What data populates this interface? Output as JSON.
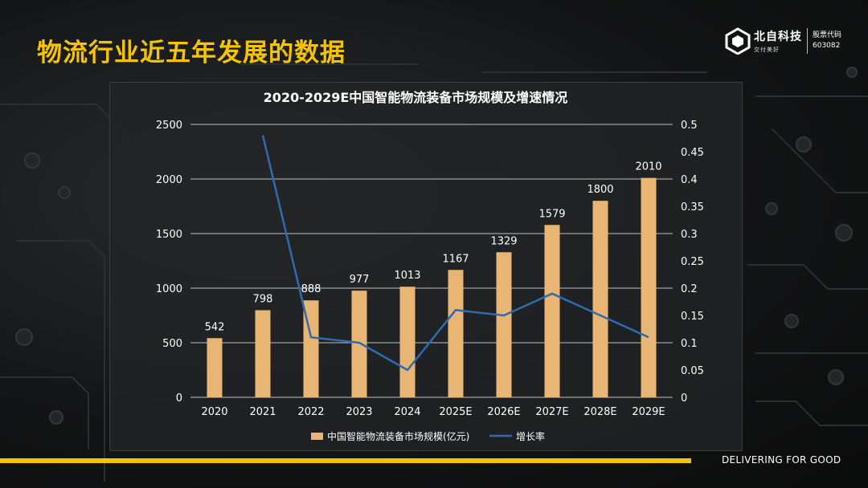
{
  "slide": {
    "title": "物流行业近五年发展的数据",
    "tagline": "DELIVERING FOR GOOD"
  },
  "logo": {
    "name": "北自科技",
    "slogan": "交付美好",
    "stock_label": "股票代码",
    "stock_code": "603082"
  },
  "colors": {
    "accent": "#f5c400",
    "bar": "#e8b574",
    "line": "#2e6cb0",
    "text": "#ffffff",
    "grid": "#bfbfbf"
  },
  "chart_data": {
    "type": "bar+line",
    "title": "2020-2029E中国智能物流装备市场规模及增速情况",
    "categories": [
      "2020",
      "2021",
      "2022",
      "2023",
      "2024",
      "2025E",
      "2026E",
      "2027E",
      "2028E",
      "2029E"
    ],
    "series": [
      {
        "name": "中国智能物流装备市场规模(亿元)",
        "type": "bar",
        "axis": "left",
        "values": [
          542,
          798,
          888,
          977,
          1013,
          1167,
          1329,
          1579,
          1800,
          2010
        ],
        "labels": [
          "542",
          "798",
          "888",
          "977",
          "1013",
          "1167",
          "1329",
          "1579",
          "1800",
          "2010"
        ]
      },
      {
        "name": "增长率",
        "type": "line",
        "axis": "right",
        "values": [
          null,
          0.48,
          0.11,
          0.1,
          0.05,
          0.16,
          0.15,
          0.19,
          0.15,
          0.11
        ]
      }
    ],
    "y_left": {
      "min": 0,
      "max": 2500,
      "ticks": [
        "0",
        "500",
        "1000",
        "1500",
        "2000",
        "2500"
      ]
    },
    "y_right": {
      "min": 0,
      "max": 0.5,
      "ticks": [
        "0",
        "0.05",
        "0.1",
        "0.15",
        "0.2",
        "0.25",
        "0.3",
        "0.35",
        "0.4",
        "0.45",
        "0.5"
      ]
    },
    "grid": true,
    "legend": "bottom"
  }
}
